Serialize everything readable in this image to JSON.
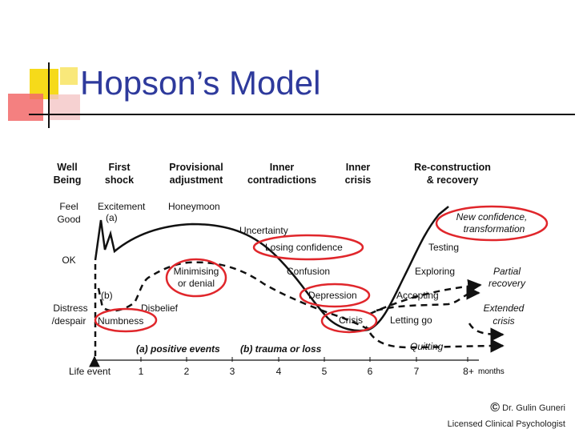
{
  "slide": {
    "title": "Hopson’s Model",
    "footer": {
      "copyright_symbol": "©",
      "author": "Dr. Gulin Guneri",
      "role": "Licensed Clinical Psychologist"
    }
  },
  "diagram": {
    "phase_headers": [
      [
        "Well",
        "Being"
      ],
      [
        "First",
        "shock"
      ],
      [
        "Provisional",
        "adjustment"
      ],
      [
        "Inner",
        "contradictions"
      ],
      [
        "Inner",
        "crisis"
      ],
      [
        "Re-construction",
        "& recovery"
      ]
    ],
    "y_labels": {
      "feel_good": [
        "Feel",
        "Good"
      ],
      "ok": "OK",
      "distress": [
        "Distress",
        "/despair"
      ]
    },
    "x_axis": {
      "start_label": "Life event",
      "ticks": [
        "1",
        "2",
        "3",
        "4",
        "5",
        "6",
        "7",
        "8+"
      ],
      "unit": "months"
    },
    "legend": {
      "positive": "(a) positive events",
      "trauma": "(b) trauma or loss"
    },
    "curve_markers": {
      "a": "(a)",
      "b": "(b)"
    },
    "stage_labels": {
      "excitement": "Excitement",
      "honeymoon": "Honeymoon",
      "uncertainty": "Uncertainty",
      "losing_confidence": "Losing confidence",
      "confusion": "Confusion",
      "depression": "Depression",
      "crisis": "Crisis",
      "letting_go": "Letting go",
      "accepting": "Accepting",
      "exploring": "Exploring",
      "testing": "Testing",
      "new_confidence": [
        "New confidence,",
        "transformation"
      ],
      "partial_recovery": [
        "Partial",
        "recovery"
      ],
      "extended_crisis": [
        "Extended",
        "crisis"
      ],
      "quitting": "Quitting",
      "minimising": [
        "Minimising",
        "or denial"
      ],
      "disbelief": "Disbelief",
      "numbness": "Numbness"
    },
    "colors": {
      "highlight": "#e0262b",
      "title": "#2e3a9c",
      "deco_yellow": "#f5d800",
      "deco_red": "#e8232a"
    }
  }
}
